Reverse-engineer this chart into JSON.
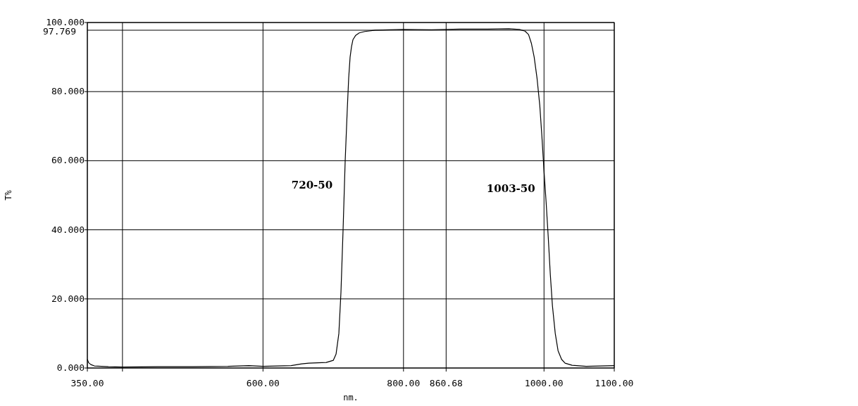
{
  "chart_data": {
    "type": "line",
    "xlabel": "nm.",
    "ylabel": "T%",
    "xlim": [
      350,
      1100
    ],
    "ylim": [
      0,
      100
    ],
    "xticks": [
      {
        "value": 350,
        "label": "350.00"
      },
      {
        "value": 400,
        "label": null
      },
      {
        "value": 600,
        "label": "600.00"
      },
      {
        "value": 800,
        "label": "800.00"
      },
      {
        "value": 860.68,
        "label": "860.68"
      },
      {
        "value": 1000,
        "label": "1000.00"
      },
      {
        "value": 1100,
        "label": "1100.00"
      }
    ],
    "yticks": [
      {
        "value": 0,
        "label": "0.000"
      },
      {
        "value": 20,
        "label": "20.000"
      },
      {
        "value": 40,
        "label": "40.000"
      },
      {
        "value": 60,
        "label": "60.000"
      },
      {
        "value": 80,
        "label": "80.000"
      },
      {
        "value": 100,
        "label": "100.000"
      }
    ],
    "ref_lines": [
      {
        "axis": "y",
        "value": 97.769,
        "label": "97.769"
      }
    ],
    "grid": true,
    "annotations": [
      {
        "text": "720-50",
        "x": 720,
        "y": 52
      },
      {
        "text": "1003-50",
        "x": 1003,
        "y": 51
      }
    ],
    "series": [
      {
        "color": "#000000",
        "x": [
          350,
          352,
          355,
          360,
          380,
          400,
          450,
          500,
          550,
          580,
          600,
          620,
          640,
          655,
          665,
          690,
          700,
          704,
          708,
          711,
          714,
          717,
          720,
          722,
          724,
          726,
          728,
          732,
          737,
          745,
          760,
          780,
          800,
          840,
          880,
          920,
          950,
          965,
          973,
          978,
          982,
          986,
          990,
          994,
          997,
          1000,
          1003,
          1006,
          1009,
          1012,
          1016,
          1020,
          1025,
          1030,
          1040,
          1060,
          1080,
          1100
        ],
        "values": [
          2.5,
          1.5,
          1,
          0.6,
          0.4,
          0.3,
          0.4,
          0.4,
          0.5,
          0.7,
          0.5,
          0.6,
          0.7,
          1.2,
          1.4,
          1.6,
          2.2,
          4,
          10,
          22,
          40,
          60,
          75,
          84,
          90,
          93,
          95,
          96.3,
          97,
          97.4,
          97.8,
          97.9,
          98,
          97.9,
          98.1,
          98.1,
          98.2,
          98,
          97.5,
          96.5,
          94,
          90,
          84,
          76,
          67,
          57,
          48,
          38,
          27,
          18,
          10,
          5,
          2.5,
          1.4,
          0.8,
          0.5,
          0.6,
          0.7
        ]
      }
    ]
  }
}
